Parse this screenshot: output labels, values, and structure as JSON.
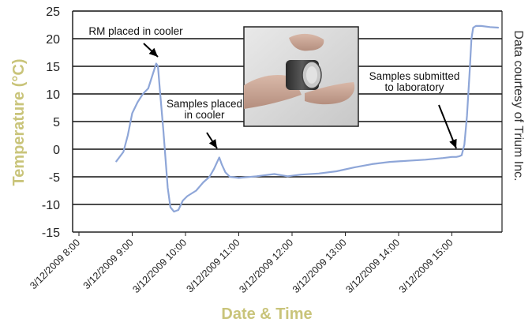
{
  "chart_data": {
    "type": "line",
    "xlabel": "Date & Time",
    "ylabel": "Temperature (°C)",
    "ylim": [
      -15,
      25
    ],
    "yticks": [
      -15,
      -10,
      -5,
      0,
      5,
      10,
      15,
      20,
      25
    ],
    "xticks": [
      "3/12/2009 8:00",
      "3/12/2009 9:00",
      "3/12/2009 10:00",
      "3/12/2009 11:00",
      "3/12/2009 12:00",
      "3/12/2009 13:00",
      "3/12/2009 14:00",
      "3/12/2009 15:00"
    ],
    "grid": "horizontal",
    "axis_title_color": "#c9c47a",
    "line_color": "#8ea6d8",
    "series": [
      {
        "x": [
          "3/12/2009 8:42",
          "3/12/2009 8:50",
          "3/12/2009 8:55",
          "3/12/2009 9:00",
          "3/12/2009 9:06",
          "3/12/2009 9:12",
          "3/12/2009 9:18",
          "3/12/2009 9:23",
          "3/12/2009 9:27",
          "3/12/2009 9:29",
          "3/12/2009 9:31",
          "3/12/2009 9:35",
          "3/12/2009 9:40",
          "3/12/2009 9:43",
          "3/12/2009 9:47",
          "3/12/2009 9:52",
          "3/12/2009 9:57",
          "3/12/2009 10:02",
          "3/12/2009 10:12",
          "3/12/2009 10:20",
          "3/12/2009 10:27",
          "3/12/2009 10:32",
          "3/12/2009 10:36",
          "3/12/2009 10:38",
          "3/12/2009 10:41",
          "3/12/2009 10:45",
          "3/12/2009 10:50",
          "3/12/2009 11:00",
          "3/12/2009 11:20",
          "3/12/2009 11:40",
          "3/12/2009 11:55",
          "3/12/2009 12:10",
          "3/12/2009 12:30",
          "3/12/2009 12:50",
          "3/12/2009 13:10",
          "3/12/2009 13:30",
          "3/12/2009 13:50",
          "3/12/2009 14:10",
          "3/12/2009 14:30",
          "3/12/2009 14:50",
          "3/12/2009 15:00",
          "3/12/2009 15:05",
          "3/12/2009 15:08",
          "3/12/2009 15:11",
          "3/12/2009 15:14",
          "3/12/2009 15:17",
          "3/12/2009 15:20",
          "3/12/2009 15:22",
          "3/12/2009 15:24",
          "3/12/2009 15:27",
          "3/12/2009 15:33",
          "3/12/2009 15:43",
          "3/12/2009 15:52"
        ],
        "y": [
          -2.2,
          -0.5,
          2.5,
          6.5,
          8.5,
          10,
          11,
          13.5,
          15.5,
          15,
          11,
          3.5,
          -7,
          -10.5,
          -11.3,
          -11,
          -9.3,
          -8.5,
          -7.5,
          -6,
          -5,
          -3.6,
          -2.2,
          -1.5,
          -2.8,
          -4.2,
          -5,
          -5.2,
          -4.9,
          -4.5,
          -4.9,
          -4.6,
          -4.4,
          -4.0,
          -3.3,
          -2.7,
          -2.3,
          -2.1,
          -1.9,
          -1.6,
          -1.4,
          -1.4,
          -1.3,
          -1.1,
          0.8,
          6,
          14,
          20,
          22,
          22.3,
          22.3,
          22.1,
          22
        ]
      }
    ],
    "annotations": [
      {
        "lines": [
          "RM placed in cooler"
        ]
      },
      {
        "lines": [
          "Samples placed",
          "in cooler"
        ]
      },
      {
        "lines": [
          "Samples submitted",
          "to laboratory"
        ]
      }
    ],
    "credit": "Data courtesy of Trium Inc."
  }
}
